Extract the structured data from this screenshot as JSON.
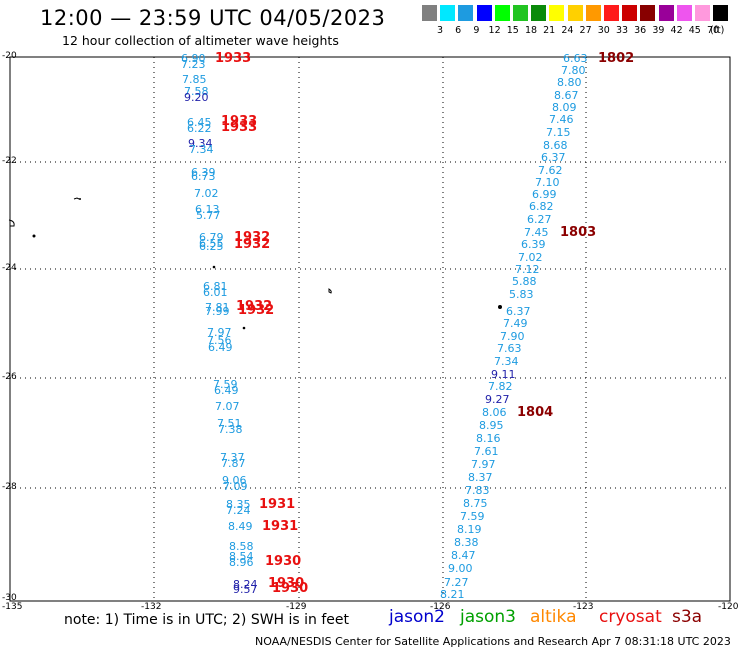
{
  "header": {
    "title": "12:00 — 23:59 UTC 04/05/2023",
    "subtitle": "12 hour collection of altimeter wave heights"
  },
  "legend": {
    "colors": [
      "#808080",
      "#00e8ff",
      "#1e9be0",
      "#0000ff",
      "#00ff00",
      "#22c422",
      "#0a8a0a",
      "#ffff00",
      "#ffd000",
      "#ff9900",
      "#ff1a1a",
      "#cc0000",
      "#880000",
      "#990099",
      "#ee55ee",
      "#ff99dd",
      "#000000"
    ],
    "labels": [
      "3",
      "6",
      "9",
      "12",
      "15",
      "18",
      "21",
      "24",
      "27",
      "30",
      "33",
      "36",
      "39",
      "42",
      "45",
      "70",
      "(ft)"
    ]
  },
  "axes": {
    "lat_labels": [
      "-20",
      "-22",
      "-24",
      "-26",
      "-28",
      "-30"
    ],
    "lon_labels": [
      "-135",
      "-132",
      "-129",
      "-126",
      "-123",
      "-120"
    ]
  },
  "tracks": {
    "west_values": [
      "6.90",
      "7.23",
      "7.85",
      "7.58",
      "9.20",
      "6.45",
      "6.22",
      "9.34",
      "7.34",
      "6.39",
      "6.73",
      "7.02",
      "6.13",
      "5.77",
      "6.79",
      "6.55",
      "6.25",
      "6.81",
      "6.01",
      "7.81",
      "7.99",
      "7.97",
      "7.56",
      "6.49",
      "7.59",
      "6.49",
      "7.07",
      "7.51",
      "7.38",
      "7.37",
      "7.87",
      "9.06",
      "7.09",
      "8.35",
      "7.24",
      "8.49",
      "8.58",
      "8.54",
      "8.96",
      "8.24",
      "9.57"
    ],
    "east_values": [
      "6.63",
      "7.80",
      "8.80",
      "8.67",
      "8.09",
      "7.46",
      "7.15",
      "8.68",
      "6.37",
      "7.62",
      "7.10",
      "6.99",
      "6.82",
      "6.27",
      "7.45",
      "6.39",
      "7.02",
      "7.12",
      "5.88",
      "5.83",
      "6.37",
      "7.49",
      "7.90",
      "7.63",
      "7.34",
      "9.11",
      "7.82",
      "9.27",
      "8.06",
      "8.95",
      "8.16",
      "7.61",
      "7.97",
      "8.37",
      "7.83",
      "8.75",
      "7.59",
      "8.19",
      "8.38",
      "8.47",
      "9.00",
      "7.27",
      "8.21"
    ],
    "west_pass_times": [
      "1933",
      "1933",
      "1933",
      "1932",
      "1932",
      "1932",
      "1932",
      "1931",
      "1931",
      "1930",
      "1930",
      "1930"
    ],
    "east_pass_times": [
      "1802",
      "1803",
      "1804"
    ]
  },
  "footer": {
    "note": "note: 1) Time is in UTC; 2) SWH is in feet",
    "satellites": [
      {
        "name": "jason2",
        "color": "#0000cc"
      },
      {
        "name": "jason3",
        "color": "#00a000"
      },
      {
        "name": "altika",
        "color": "#ff8800"
      },
      {
        "name": "cryosat",
        "color": "#e81010"
      },
      {
        "name": "s3a",
        "color": "#8b0000"
      }
    ],
    "credit": "NOAA/NESDIS Center for Satellite Applications and Research   Apr  7 08:31:18 UTC 2023"
  }
}
